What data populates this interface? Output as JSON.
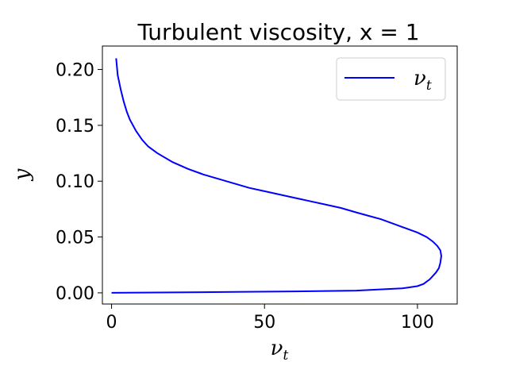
{
  "chart_data": {
    "type": "line",
    "title": "Turbulent viscosity, x = 1",
    "xlabel": "ν",
    "xlabel_sub": "t",
    "ylabel": "y",
    "xlim": [
      -3,
      113
    ],
    "ylim": [
      -0.01,
      0.221
    ],
    "xticks": [
      0,
      50,
      100
    ],
    "xtick_labels": [
      "0",
      "50",
      "100"
    ],
    "yticks": [
      0.0,
      0.05,
      0.1,
      0.15,
      0.2
    ],
    "ytick_labels": [
      "0.00",
      "0.05",
      "0.10",
      "0.15",
      "0.20"
    ],
    "grid": false,
    "legend_position": "top-right",
    "series": [
      {
        "name": "ν",
        "name_sub": "t",
        "color": "#0000ff",
        "x": [
          0,
          20,
          40,
          60,
          80,
          95,
          100,
          102,
          103,
          104,
          105,
          106,
          107,
          107.5,
          107.8,
          107.5,
          106.5,
          105,
          103,
          100,
          96,
          92,
          88,
          84,
          80,
          75,
          70,
          65,
          60,
          55,
          50,
          45,
          40,
          35,
          30,
          25,
          20,
          15,
          12,
          10,
          8,
          6,
          5,
          4,
          3,
          2,
          1.5
        ],
        "y": [
          0.0,
          0.0004,
          0.0008,
          0.0013,
          0.002,
          0.004,
          0.006,
          0.008,
          0.01,
          0.012,
          0.015,
          0.018,
          0.022,
          0.027,
          0.033,
          0.038,
          0.042,
          0.046,
          0.05,
          0.054,
          0.058,
          0.062,
          0.066,
          0.069,
          0.072,
          0.076,
          0.079,
          0.082,
          0.085,
          0.088,
          0.091,
          0.094,
          0.098,
          0.102,
          0.106,
          0.111,
          0.117,
          0.125,
          0.131,
          0.137,
          0.145,
          0.155,
          0.162,
          0.171,
          0.182,
          0.195,
          0.21
        ]
      }
    ]
  }
}
